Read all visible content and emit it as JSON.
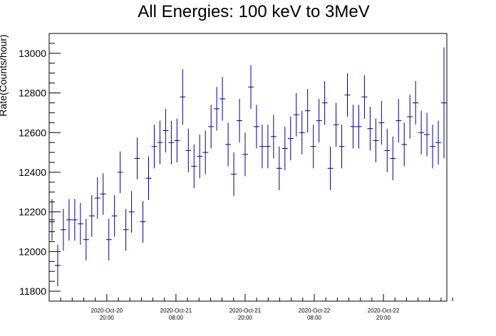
{
  "chart_data": {
    "type": "scatter",
    "title": "All Energies:  100 keV to 3MeV",
    "xlabel": "",
    "ylabel": "Rate(Counts/hour)",
    "ylim": [
      11750,
      13100
    ],
    "xlim": [
      0,
      69
    ],
    "yticks": [
      11800,
      12000,
      12200,
      12400,
      12600,
      12800,
      13000
    ],
    "xticks": [
      {
        "pos": 10,
        "date": "2020-Oct-20",
        "time": "20:00"
      },
      {
        "pos": 22,
        "date": "2020-Oct-21",
        "time": "08:00"
      },
      {
        "pos": 34,
        "date": "2020-Oct-21",
        "time": "20:00"
      },
      {
        "pos": 46,
        "date": "2020-Oct-22",
        "time": "08:00"
      },
      {
        "pos": 58,
        "date": "2020-Oct-22",
        "time": "20:00"
      }
    ],
    "color": "#00008b",
    "series": [
      {
        "values": [
          12160,
          11930,
          12110,
          12160,
          12160,
          12140,
          12060,
          12180,
          12270,
          12290,
          12060,
          12180,
          12400,
          12110,
          12200,
          12470,
          12150,
          12370,
          12530,
          12550,
          12610,
          12550,
          12560,
          12780,
          12510,
          12430,
          12480,
          12500,
          12630,
          12720,
          12770,
          12540,
          12390,
          12660,
          12490,
          12830,
          12630,
          12530,
          12530,
          12580,
          12420,
          12520,
          12570,
          12690,
          12600,
          12710,
          12530,
          12660,
          12750,
          12420,
          12640,
          12530,
          12790,
          12630,
          12630,
          12780,
          12620,
          12560,
          12650,
          12510,
          12470,
          12660,
          12540,
          12680,
          12750,
          12600,
          12590,
          12530,
          12550,
          12750
        ],
        "errors": [
          105,
          105,
          105,
          105,
          105,
          105,
          105,
          105,
          105,
          105,
          105,
          105,
          105,
          105,
          105,
          105,
          105,
          110,
          110,
          110,
          110,
          110,
          110,
          140,
          110,
          110,
          110,
          110,
          110,
          110,
          110,
          110,
          110,
          110,
          110,
          110,
          110,
          110,
          110,
          110,
          110,
          110,
          110,
          110,
          110,
          110,
          110,
          110,
          110,
          110,
          110,
          110,
          110,
          110,
          110,
          110,
          110,
          110,
          110,
          110,
          110,
          110,
          110,
          110,
          110,
          110,
          110,
          110,
          110,
          280
        ]
      }
    ]
  }
}
